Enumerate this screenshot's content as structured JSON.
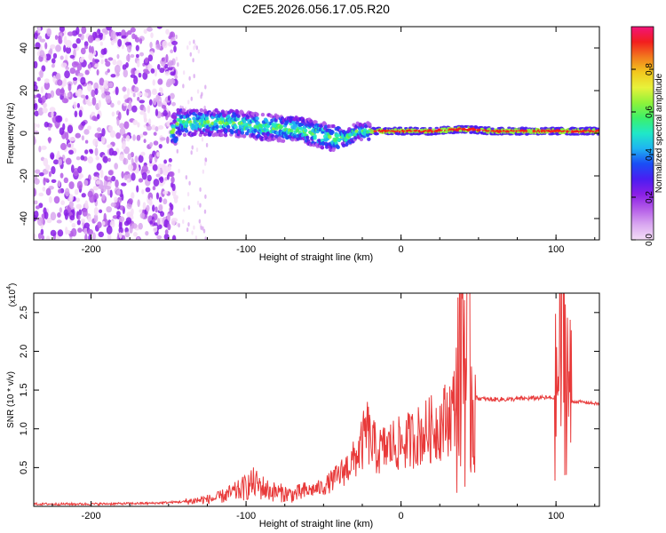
{
  "title": "C2E5.2026.056.17.05.R20",
  "colors": {
    "snr_line": "#e83a3a",
    "axis": "#000000",
    "colormap": [
      "#f4ddf7",
      "#d9a8f0",
      "#b55ee8",
      "#8a1fe6",
      "#4a1ef2",
      "#1a4ef5",
      "#1fb4f2",
      "#1fe8c8",
      "#3cf06a",
      "#8ff23a",
      "#e8f23a",
      "#f2c81e",
      "#f27a1e",
      "#f21e1e",
      "#f2147a"
    ]
  },
  "chart_data": [
    {
      "type": "heatmap",
      "title": "C2E5.2026.056.17.05.R20",
      "xlabel": "Height of straight line (km)",
      "ylabel": "Frequency (Hz)",
      "xlim": [
        -237,
        128
      ],
      "ylim": [
        -50,
        50
      ],
      "xticks": [
        -200,
        -100,
        0,
        100
      ],
      "yticks": [
        -40,
        -20,
        0,
        20,
        40
      ],
      "colorbar": {
        "label": "Normalized spectral amplitude",
        "range": [
          0,
          1
        ],
        "ticks": [
          "0.0",
          "0.2",
          "0.4",
          "0.6",
          "0.8"
        ],
        "tick_values": [
          0,
          0.2,
          0.4,
          0.6,
          0.8
        ]
      },
      "noise_region_x": [
        -237,
        -145
      ],
      "sparse_region_x": [
        -145,
        -125
      ],
      "signal_band_center": [
        [
          -145,
          5
        ],
        [
          -130,
          5
        ],
        [
          -110,
          5
        ],
        [
          -90,
          3
        ],
        [
          -70,
          2
        ],
        [
          -55,
          0
        ],
        [
          -45,
          -2
        ],
        [
          -35,
          -2
        ],
        [
          -28,
          1
        ],
        [
          -20,
          1
        ],
        [
          -10,
          1
        ],
        [
          0,
          1
        ],
        [
          20,
          1
        ],
        [
          40,
          2
        ],
        [
          60,
          1
        ],
        [
          100,
          1
        ],
        [
          128,
          1
        ]
      ]
    },
    {
      "type": "line",
      "xlabel": "Height of straight line (km)",
      "ylabel": "SNR (10 * v/v)",
      "y_multiplier": "(x10^4)",
      "y_multiplier_base": "(x10",
      "y_multiplier_exp": "4",
      "xlim": [
        -237,
        128
      ],
      "ylim": [
        0,
        2.75
      ],
      "xticks": [
        -200,
        -100,
        0,
        100
      ],
      "yticks": [
        0.5,
        1.0,
        1.5,
        2.0,
        2.5
      ],
      "ytick_labels": [
        "0.5",
        "1.0",
        "1.5",
        "2.0",
        "2.5"
      ],
      "series": [
        {
          "x": [
            -237,
            -200,
            -160,
            -140,
            -120,
            -105,
            -95,
            -85,
            -70,
            -60,
            -50,
            -40,
            -30,
            -25,
            -22,
            -20,
            -15,
            -10,
            -5,
            0,
            5,
            10,
            15,
            20,
            25,
            30,
            35,
            38,
            40,
            42,
            44,
            45,
            48,
            55,
            70,
            90,
            100,
            102,
            104,
            106,
            108,
            110,
            115,
            128
          ],
          "values": [
            0.03,
            0.03,
            0.04,
            0.06,
            0.1,
            0.2,
            0.3,
            0.2,
            0.15,
            0.2,
            0.25,
            0.4,
            0.6,
            0.8,
            1.0,
            0.85,
            0.7,
            0.75,
            0.8,
            0.8,
            0.85,
            0.9,
            0.95,
            1.0,
            1.05,
            1.15,
            1.3,
            1.9,
            2.55,
            1.6,
            2.75,
            1.5,
            1.4,
            1.38,
            1.38,
            1.4,
            1.4,
            1.8,
            2.3,
            1.9,
            1.6,
            1.35,
            1.35,
            1.32
          ]
        }
      ]
    }
  ]
}
